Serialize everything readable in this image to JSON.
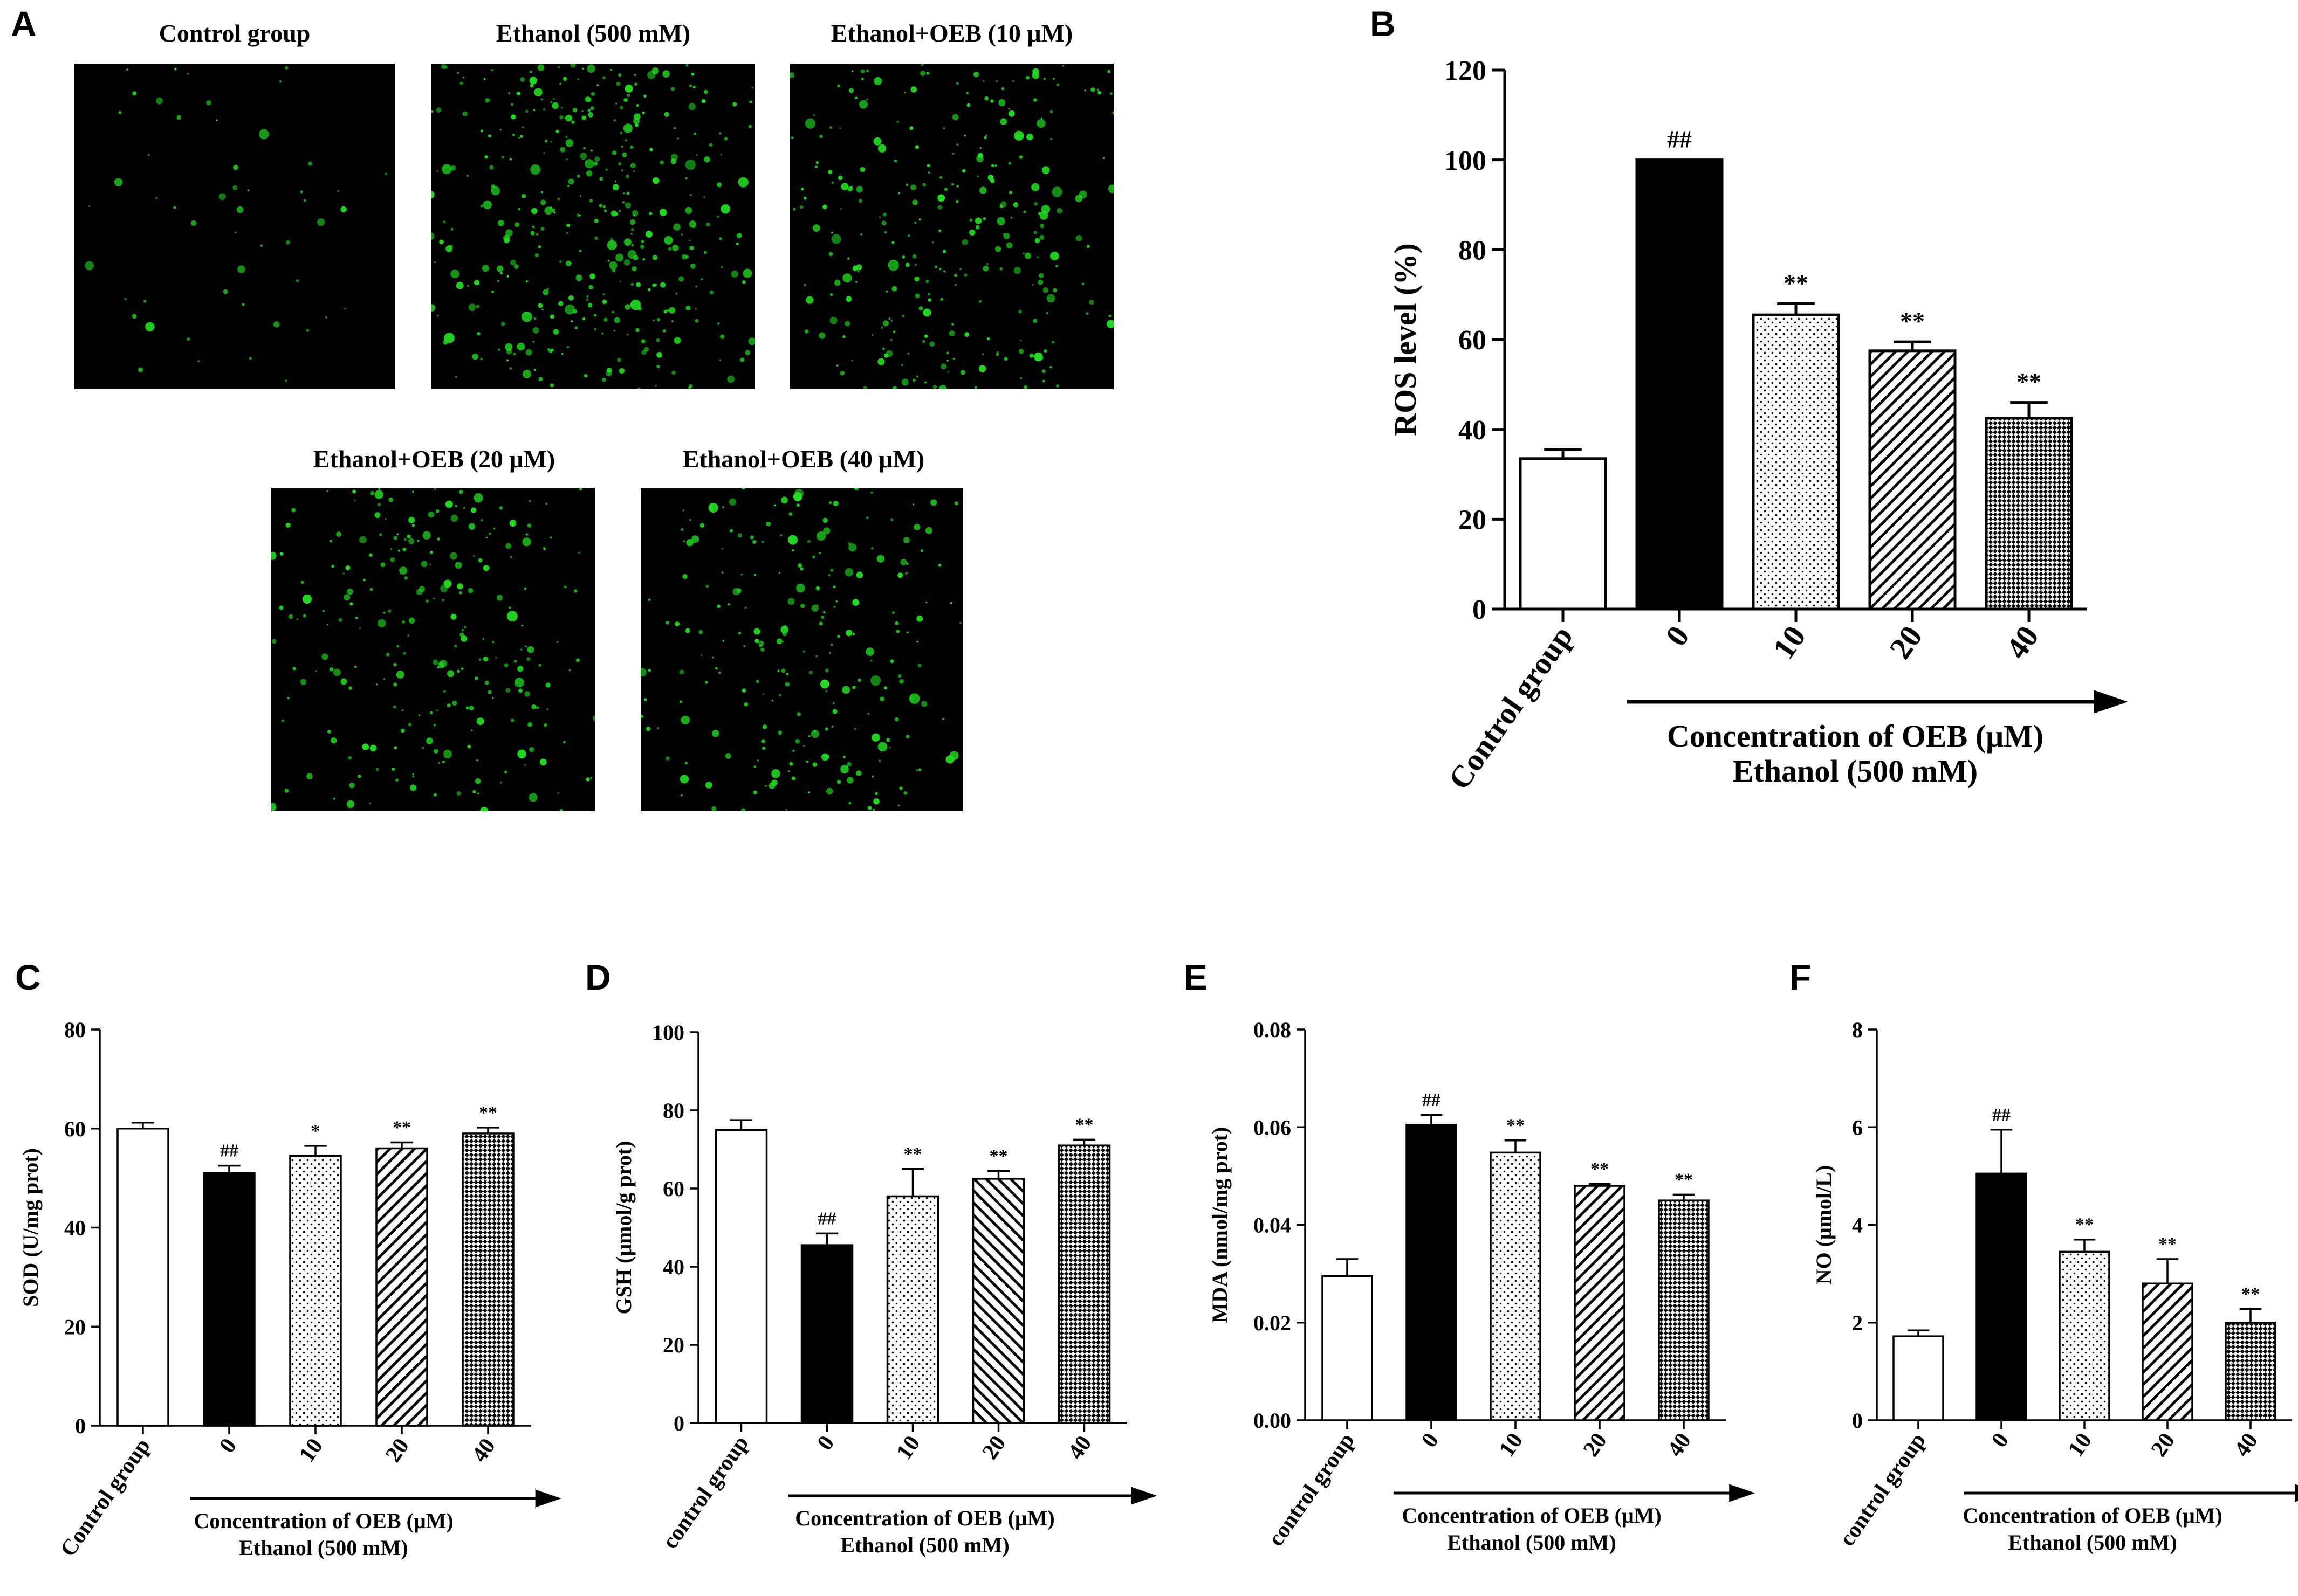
{
  "panel_letters": {
    "a": "A",
    "b": "B",
    "c": "C",
    "d": "D",
    "e": "E",
    "f": "F"
  },
  "micrographs": [
    {
      "title": "Control group",
      "density": 55
    },
    {
      "title": "Ethanol (500 mM)",
      "density": 420
    },
    {
      "title": "Ethanol+OEB (10 μM)",
      "density": 300
    },
    {
      "title": "Ethanol+OEB (20 μM)",
      "density": 270
    },
    {
      "title": "Ethanol+OEB (40 μM)",
      "density": 250
    }
  ],
  "colors": {
    "fluorescence": "#22dd22",
    "background": "#000000",
    "axis": "#000000"
  },
  "chart_data": [
    {
      "id": "B",
      "type": "bar",
      "ylabel": "ROS level (%)",
      "ylim": [
        0,
        120
      ],
      "yticks": [
        0,
        20,
        40,
        60,
        80,
        100,
        120
      ],
      "categories": [
        "Control group",
        "0",
        "10",
        "20",
        "40"
      ],
      "values": [
        33.5,
        100,
        65.5,
        57.5,
        42.5
      ],
      "errors": [
        2,
        0,
        2.5,
        2,
        3.5
      ],
      "significance": [
        "",
        "##",
        "**",
        "**",
        "**"
      ],
      "patterns": [
        "white",
        "black",
        "dots",
        "diag",
        "check"
      ],
      "arrow_label_1": "Concentration of OEB (μM)",
      "arrow_label_2": "Ethanol (500 mM)"
    },
    {
      "id": "C",
      "type": "bar",
      "ylabel": "SOD (U/mg prot)",
      "ylim": [
        0,
        80
      ],
      "yticks": [
        0,
        20,
        40,
        60,
        80
      ],
      "categories": [
        "Control group",
        "0",
        "10",
        "20",
        "40"
      ],
      "values": [
        60,
        51,
        54.5,
        56,
        59
      ],
      "errors": [
        1.2,
        1.5,
        2,
        1.2,
        1.2
      ],
      "significance": [
        "",
        "##",
        "*",
        "**",
        "**"
      ],
      "patterns": [
        "white",
        "black",
        "dots",
        "diag",
        "check"
      ],
      "arrow_label_1": "Concentration of OEB (μM)",
      "arrow_label_2": "Ethanol (500 mM)"
    },
    {
      "id": "D",
      "type": "bar",
      "ylabel": "GSH (μmol/g prot)",
      "ylim": [
        0,
        100
      ],
      "yticks": [
        0,
        20,
        40,
        60,
        80,
        100
      ],
      "categories": [
        "control group",
        "0",
        "10",
        "20",
        "40"
      ],
      "values": [
        75,
        45.5,
        58,
        62.5,
        71
      ],
      "errors": [
        2.5,
        3,
        7,
        2,
        1.5
      ],
      "significance": [
        "",
        "##",
        "**",
        "**",
        "**"
      ],
      "patterns": [
        "white",
        "black",
        "dots",
        "diag2",
        "check"
      ],
      "arrow_label_1": "Concentration of OEB (μM)",
      "arrow_label_2": "Ethanol (500 mM)"
    },
    {
      "id": "E",
      "type": "bar",
      "ylabel": "MDA (nmol/mg prot)",
      "ylim": [
        0,
        0.08
      ],
      "yticks": [
        0,
        0.02,
        0.04,
        0.06,
        0.08
      ],
      "ytick_labels": [
        "0.00",
        "0.02",
        "0.04",
        "0.06",
        "0.08"
      ],
      "categories": [
        "control group",
        "0",
        "10",
        "20",
        "40"
      ],
      "values": [
        0.0295,
        0.0605,
        0.0548,
        0.048,
        0.045
      ],
      "errors": [
        0.0035,
        0.002,
        0.0025,
        0.0004,
        0.0012
      ],
      "significance": [
        "",
        "##",
        "**",
        "**",
        "**"
      ],
      "patterns": [
        "white",
        "black",
        "dots",
        "diag",
        "check"
      ],
      "arrow_label_1": "Concentration of OEB (μM)",
      "arrow_label_2": "Ethanol (500 mM)"
    },
    {
      "id": "F",
      "type": "bar",
      "ylabel": "NO (μmol/L)",
      "ylim": [
        0,
        8
      ],
      "yticks": [
        0,
        2,
        4,
        6,
        8
      ],
      "categories": [
        "control group",
        "0",
        "10",
        "20",
        "40"
      ],
      "values": [
        1.72,
        5.05,
        3.45,
        2.8,
        2.0
      ],
      "errors": [
        0.12,
        0.9,
        0.25,
        0.5,
        0.28
      ],
      "significance": [
        "",
        "##",
        "**",
        "**",
        "**"
      ],
      "patterns": [
        "white",
        "black",
        "dots",
        "diag",
        "check"
      ],
      "arrow_label_1": "Concentration of OEB (μM)",
      "arrow_label_2": "Ethanol (500 mM)"
    }
  ]
}
